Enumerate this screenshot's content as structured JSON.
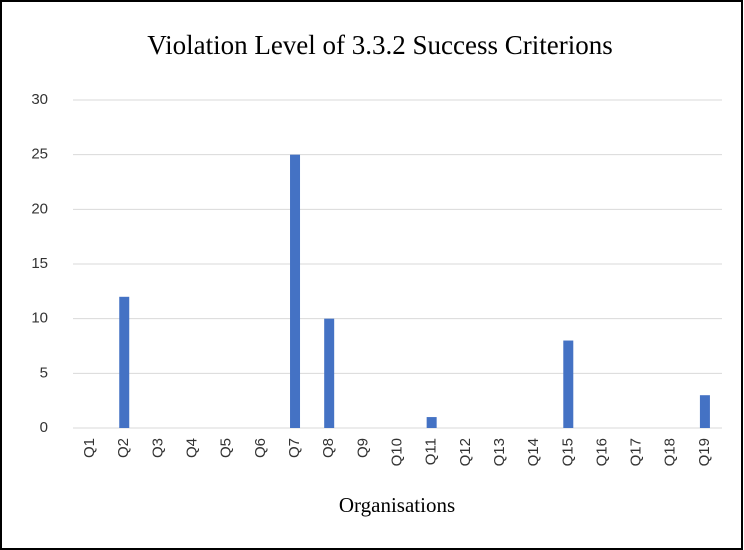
{
  "chart_data": {
    "type": "bar",
    "title": "Violation Level of 3.3.2 Success Criterions",
    "x_label": "Organisations",
    "categories": [
      "Q1",
      "Q2",
      "Q3",
      "Q4",
      "Q5",
      "Q6",
      "Q7",
      "Q8",
      "Q9",
      "Q10",
      "Q11",
      "Q12",
      "Q13",
      "Q14",
      "Q15",
      "Q16",
      "Q17",
      "Q18",
      "Q19"
    ],
    "values": [
      0,
      12,
      0,
      0,
      0,
      0,
      25,
      10,
      0,
      0,
      1,
      0,
      0,
      0,
      8,
      0,
      0,
      0,
      3
    ],
    "color": "#4472c4",
    "ylim": [
      0,
      30
    ],
    "yticks": [
      0,
      5,
      10,
      15,
      20,
      25,
      30
    ],
    "grid": true
  }
}
